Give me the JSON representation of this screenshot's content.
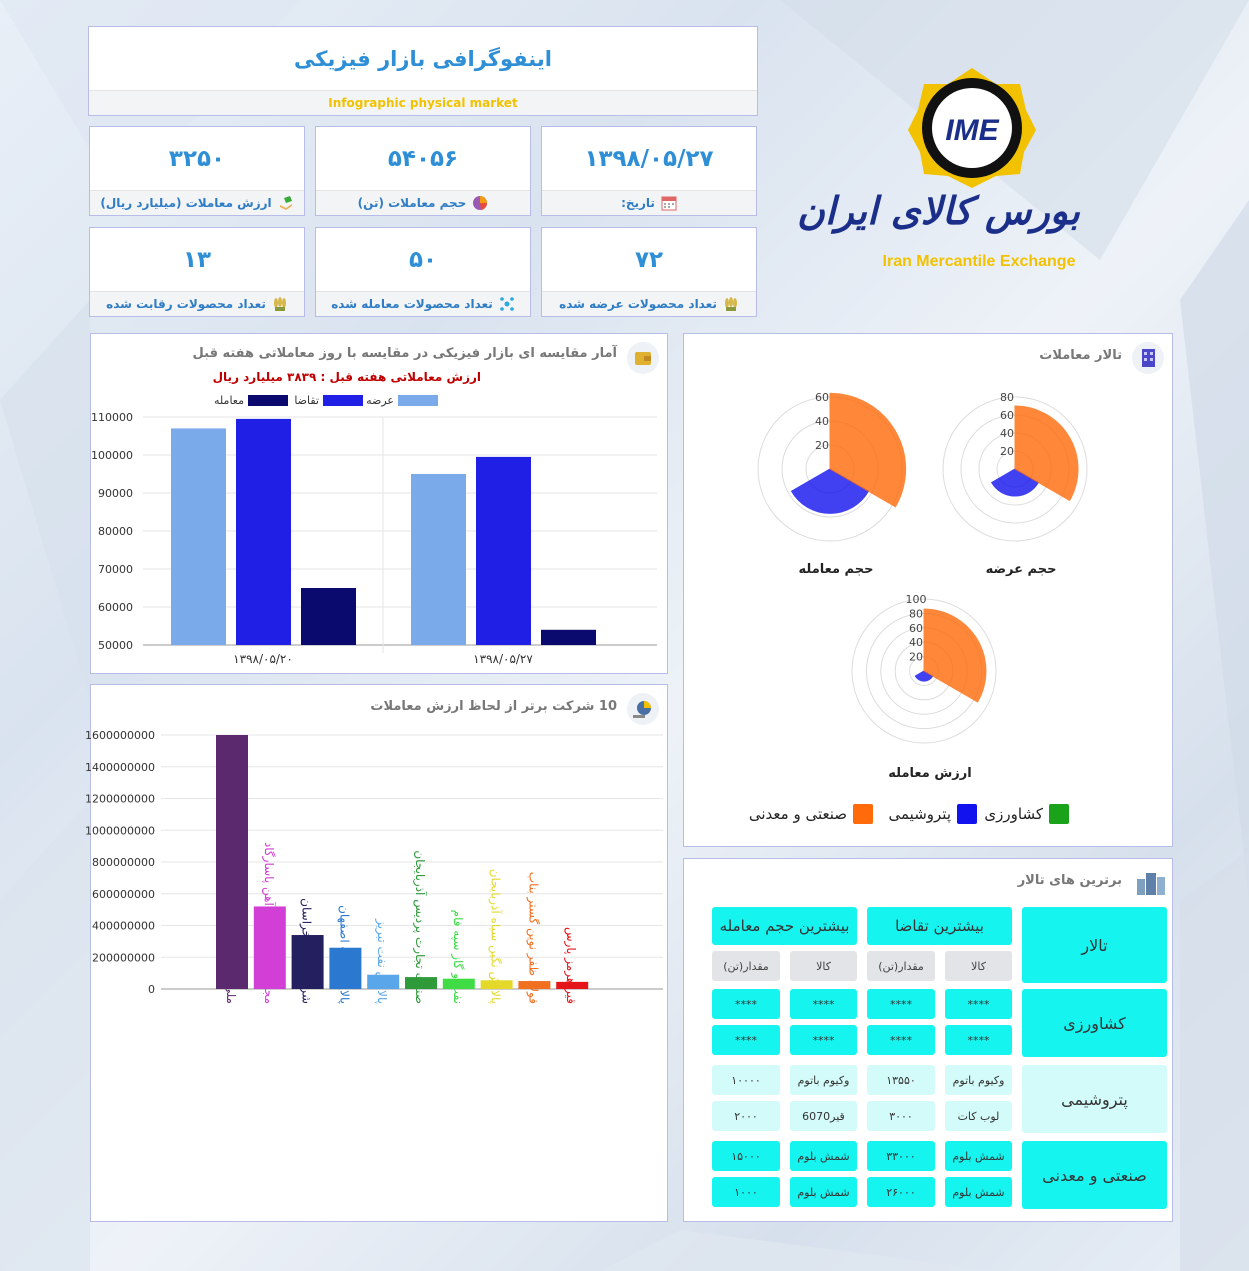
{
  "header": {
    "title_fa": "اینفوگرافی بازار فیزیکی",
    "title_en": "Infographic physical market"
  },
  "stats": [
    {
      "value": "۳۲۵۰",
      "label": "ارزش معاملات (میلیارد ریال)",
      "icon": "money-hand-icon"
    },
    {
      "value": "۵۴۰۵۶",
      "label": "حجم معاملات (تن)",
      "icon": "pie-chart-icon"
    },
    {
      "value": "۱۳۹۸/۰۵/۲۷",
      "label": "تاریخ:",
      "icon": "calendar-icon"
    },
    {
      "value": "۱۳",
      "label": "تعداد محصولات رقابت شده",
      "icon": "wheat-icon"
    },
    {
      "value": "۵۰",
      "label": "تعداد محصولات معامله شده",
      "icon": "molecule-icon"
    },
    {
      "value": "۷۲",
      "label": "تعداد محصولات عرضه شده",
      "icon": "wheat-icon"
    }
  ],
  "logo": {
    "mark": "IME",
    "name_fa": "بورس کالای ایران",
    "name_en": "Iran Mercantile Exchange"
  },
  "weekly_panel": {
    "title": "آمار مقایسه ای بازار فیزیکی در مقایسه با روز معاملاتی هفته قبل",
    "subtitle": "ارزش معاملاتی هفته قبل : ۳۸۳۹ میلیارد ریال"
  },
  "companies_panel": {
    "title": "10 شرکت برتر از لحاظ ارزش معاملات"
  },
  "halls_panel": {
    "title": "تالار معاملات",
    "legend": [
      {
        "label": "کشاورزی",
        "color": "#1aa21a"
      },
      {
        "label": "پتروشیمی",
        "color": "#1212ee"
      },
      {
        "label": "صنعتی و معدنی",
        "color": "#ff6a0a"
      }
    ]
  },
  "top_halls": {
    "title": "برترین های تالار",
    "col_hall": "تالار",
    "col_demand": "بیشترین تقاضا",
    "col_volume": "بیشترین حجم معامله",
    "sub_good": "کالا",
    "sub_qty": "مقدار(تن)",
    "sub_qty2": "مقدار(تن)",
    "halls": [
      "کشاورزی",
      "پتروشیمی",
      "صنعتی و معدنی"
    ],
    "rows": [
      {
        "d_good": "****",
        "d_qty": "****",
        "v_good": "****",
        "v_qty": "****"
      },
      {
        "d_good": "****",
        "d_qty": "****",
        "v_good": "****",
        "v_qty": "****"
      },
      {
        "d_good": "وکیوم باتوم",
        "d_qty": "۱۳۵۵۰",
        "v_good": "وکیوم باتوم",
        "v_qty": "۱۰۰۰۰"
      },
      {
        "d_good": "لوب کات",
        "d_qty": "۳۰۰۰",
        "v_good": "قیر6070",
        "v_qty": "۲۰۰۰"
      },
      {
        "d_good": "شمش بلوم",
        "d_qty": "۳۳۰۰۰",
        "v_good": "شمش بلوم",
        "v_qty": "۱۵۰۰۰"
      },
      {
        "d_good": "شمش بلوم",
        "d_qty": "۲۶۰۰۰",
        "v_good": "شمش بلوم",
        "v_qty": "۱۰۰۰"
      }
    ]
  },
  "chart_data": [
    {
      "type": "bar",
      "title": "آمار مقایسه ای بازار فیزیکی در مقایسه با روز معاملاتی هفته قبل",
      "categories": [
        "۱۳۹۸/۰۵/۲۰",
        "۱۳۹۸/۰۵/۲۷"
      ],
      "series": [
        {
          "name": "عرضه",
          "color": "#7aaaea",
          "values": [
            107000,
            95000
          ]
        },
        {
          "name": "تقاضا",
          "color": "#1f1fe6",
          "values": [
            109500,
            99500
          ]
        },
        {
          "name": "معامله",
          "color": "#0a0a6e",
          "values": [
            65000,
            54000
          ]
        }
      ],
      "ylim": [
        50000,
        110000
      ],
      "yticks": [
        50000,
        60000,
        70000,
        80000,
        90000,
        100000,
        110000
      ],
      "legend": "top-center",
      "grid": true
    },
    {
      "type": "bar",
      "title": "10 شرکت برتر از لحاظ ارزش معاملات",
      "categories": [
        "ملی صنایع مس ایران",
        "مجتمع صنعتی ذوب آهن پاسارگاد",
        "شرکت فولاد خراسان",
        "پالایش نفت اصفهان",
        "پالایش نفت تبریز",
        "صنعت تجارت پردیس آذربایجان",
        "نفت و گاز سپه فام",
        "پالایش نگین سیاه آذربایجان",
        "فولاد ظفر نوین گستر بناب",
        "قیر هرمز پارس"
      ],
      "colors": [
        "#5b2a6e",
        "#d23fd6",
        "#242060",
        "#2a78d0",
        "#5aa6ea",
        "#2e9a3a",
        "#3fdc46",
        "#e4d92a",
        "#f07020",
        "#e4161a"
      ],
      "values": [
        1600000000,
        520000000,
        340000000,
        260000000,
        90000000,
        75000000,
        65000000,
        55000000,
        50000000,
        45000000
      ],
      "ylim": [
        0,
        1600000000
      ],
      "yticks": [
        0,
        200000000,
        400000000,
        600000000,
        800000000,
        1000000000,
        1200000000,
        1400000000,
        1600000000
      ],
      "grid": true
    },
    {
      "type": "polar",
      "title": "حجم عرضه",
      "rmax": 80,
      "rticks": [
        20,
        40,
        60,
        80
      ],
      "series": [
        {
          "name": "کشاورزی",
          "color": "#1aa21a",
          "value": 0
        },
        {
          "name": "پتروشیمی",
          "color": "#1212ee",
          "value": 30
        },
        {
          "name": "صنعتی و معدنی",
          "color": "#ff6a0a",
          "value": 70
        }
      ]
    },
    {
      "type": "polar",
      "title": "حجم معامله",
      "rmax": 60,
      "rticks": [
        20,
        40,
        60
      ],
      "series": [
        {
          "name": "کشاورزی",
          "color": "#1aa21a",
          "value": 0
        },
        {
          "name": "پتروشیمی",
          "color": "#1212ee",
          "value": 37
        },
        {
          "name": "صنعتی و معدنی",
          "color": "#ff6a0a",
          "value": 63
        }
      ]
    },
    {
      "type": "polar",
      "title": "ارزش معامله",
      "rmax": 100,
      "rticks": [
        20,
        40,
        60,
        80,
        100
      ],
      "series": [
        {
          "name": "کشاورزی",
          "color": "#1aa21a",
          "value": 0
        },
        {
          "name": "پتروشیمی",
          "color": "#1212ee",
          "value": 14
        },
        {
          "name": "صنعتی و معدنی",
          "color": "#ff6a0a",
          "value": 86
        }
      ]
    }
  ]
}
